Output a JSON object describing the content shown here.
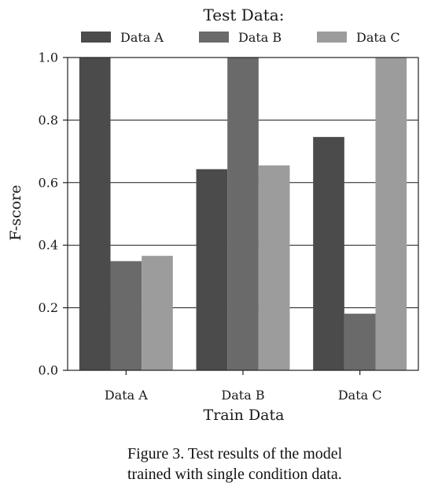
{
  "chart_data": {
    "type": "bar",
    "categories": [
      "Data A",
      "Data B",
      "Data C"
    ],
    "xlabel": "Train Data",
    "ylabel": "F-score",
    "ylim": [
      0.0,
      1.0
    ],
    "yticks": [
      "0.0",
      "0.2",
      "0.4",
      "0.6",
      "0.8",
      "1.0"
    ],
    "legend_title": "Test Data:",
    "legend_position": "top",
    "grid": "horizontal",
    "series": [
      {
        "name": "Data A",
        "color": "#4b4b4b",
        "values": [
          1.0,
          0.643,
          0.746
        ]
      },
      {
        "name": "Data B",
        "color": "#6a6a6a",
        "values": [
          0.349,
          1.0,
          0.181
        ]
      },
      {
        "name": "Data C",
        "color": "#9c9c9c",
        "values": [
          0.366,
          0.655,
          1.0
        ]
      }
    ]
  },
  "caption": {
    "line1": "Figure 3. Test results of the model",
    "line2": "trained with single condition data."
  }
}
